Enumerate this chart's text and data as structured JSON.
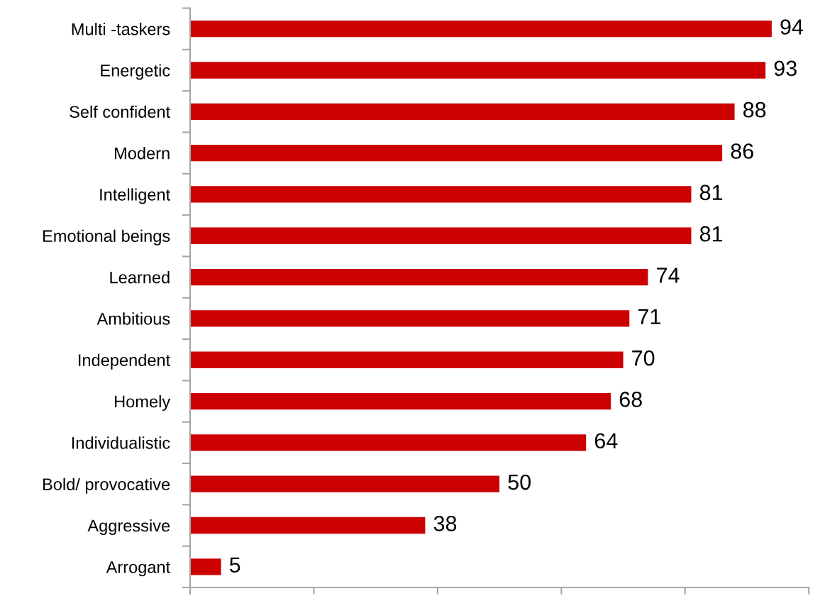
{
  "chart_data": {
    "type": "bar",
    "orientation": "horizontal",
    "categories": [
      "Multi -taskers",
      "Energetic",
      "Self confident",
      "Modern",
      "Intelligent",
      "Emotional beings",
      "Learned",
      "Ambitious",
      "Independent",
      "Homely",
      "Individualistic",
      "Bold/ provocative",
      "Aggressive",
      "Arrogant"
    ],
    "values": [
      94,
      93,
      88,
      86,
      81,
      81,
      74,
      71,
      70,
      68,
      64,
      50,
      38,
      5
    ],
    "color": "#cc0000",
    "xlim": [
      0,
      100
    ],
    "xticks": [
      {
        "value": 0,
        "label": null
      },
      {
        "value": 20,
        "label": null
      },
      {
        "value": 40,
        "label": null
      },
      {
        "value": 60,
        "label": null
      },
      {
        "value": 80,
        "label": null
      },
      {
        "value": 100,
        "label": null
      }
    ],
    "tick_labels": "y",
    "data_labels": true
  }
}
